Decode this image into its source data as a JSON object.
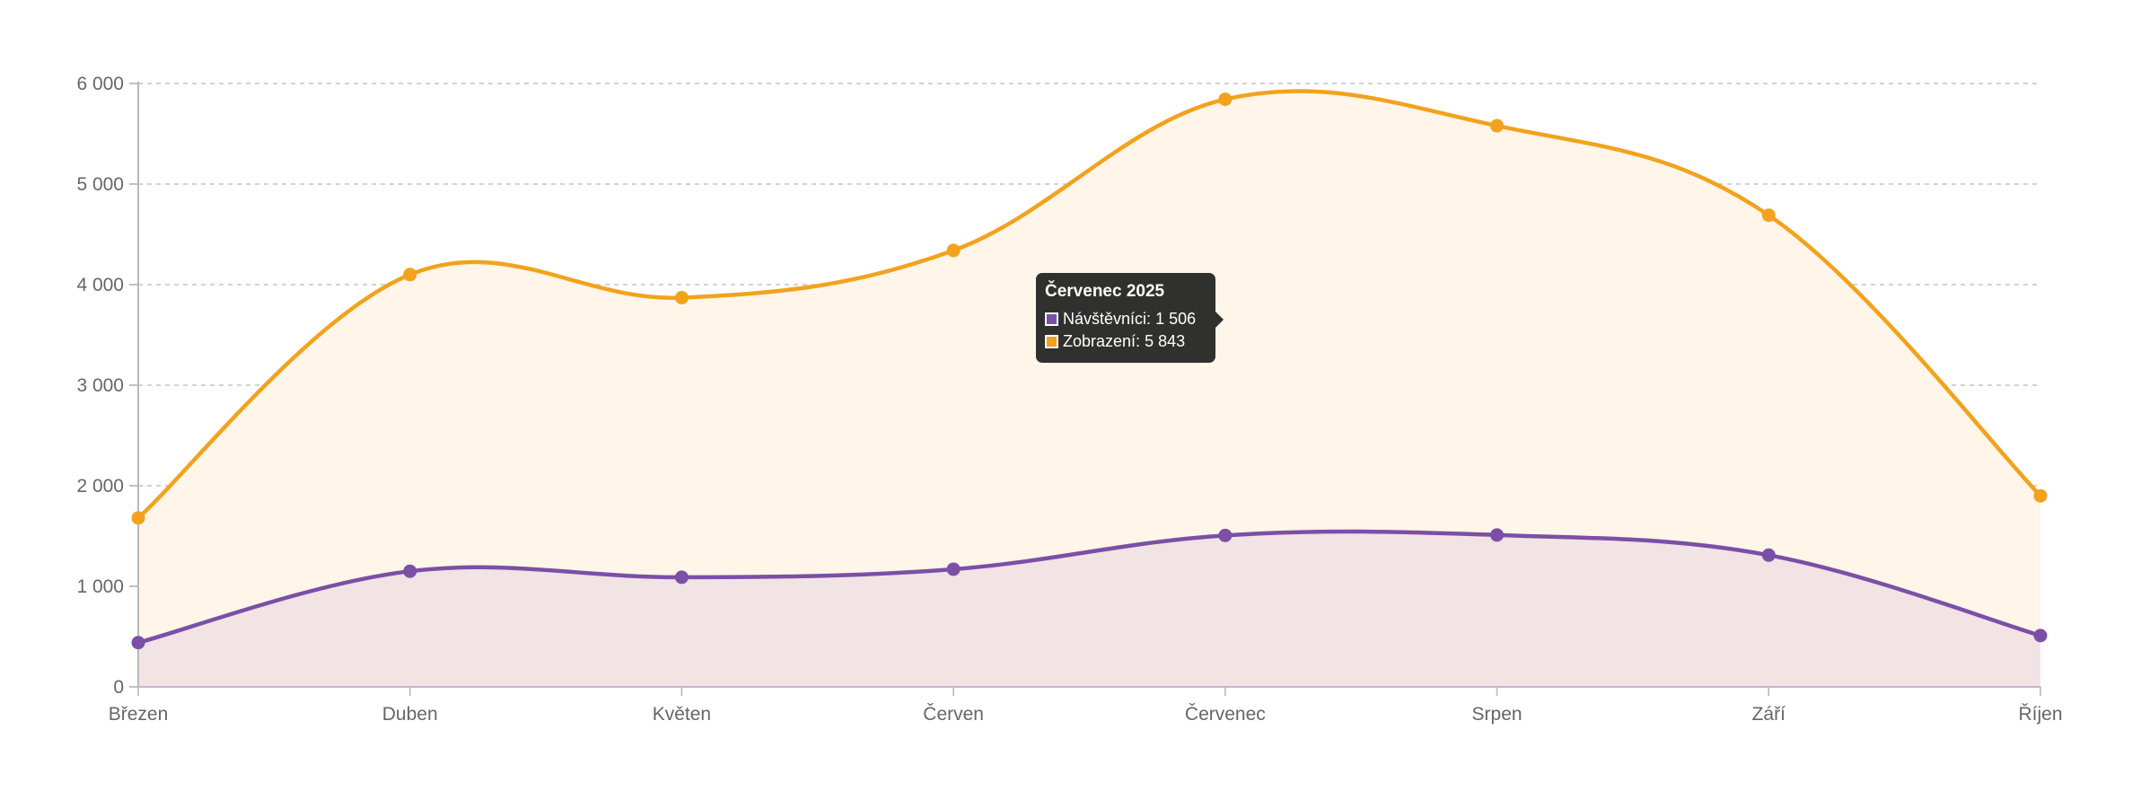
{
  "chart_data": {
    "type": "area",
    "categories": [
      "Březen",
      "Duben",
      "Květen",
      "Červen",
      "Červenec",
      "Srpen",
      "Září",
      "Říjen"
    ],
    "series": [
      {
        "name": "Návštěvníci",
        "values": [
          440,
          1150,
          1090,
          1170,
          1506,
          1510,
          1310,
          510
        ],
        "color": "#7b4fa6",
        "fill": "#f2e3e4"
      },
      {
        "name": "Zobrazení",
        "values": [
          1680,
          4100,
          3870,
          4340,
          5843,
          5580,
          4690,
          1900
        ],
        "color": "#f2a21d",
        "fill": "#fff5e8"
      }
    ],
    "y_ticks": [
      "0",
      "1 000",
      "2 000",
      "3 000",
      "4 000",
      "5 000",
      "6 000"
    ],
    "ylim": [
      0,
      6000
    ],
    "grid": "horizontal dashed",
    "title": "",
    "xlabel": "",
    "ylabel": "",
    "highlighted_category": "Červenec"
  },
  "tooltip": {
    "title": "Červenec 2025",
    "rows": [
      {
        "label": "Návštěvníci",
        "value": "1 506",
        "color": "#7b4fa6"
      },
      {
        "label": "Zobrazení",
        "value": "5 843",
        "color": "#f2a21d"
      }
    ]
  }
}
